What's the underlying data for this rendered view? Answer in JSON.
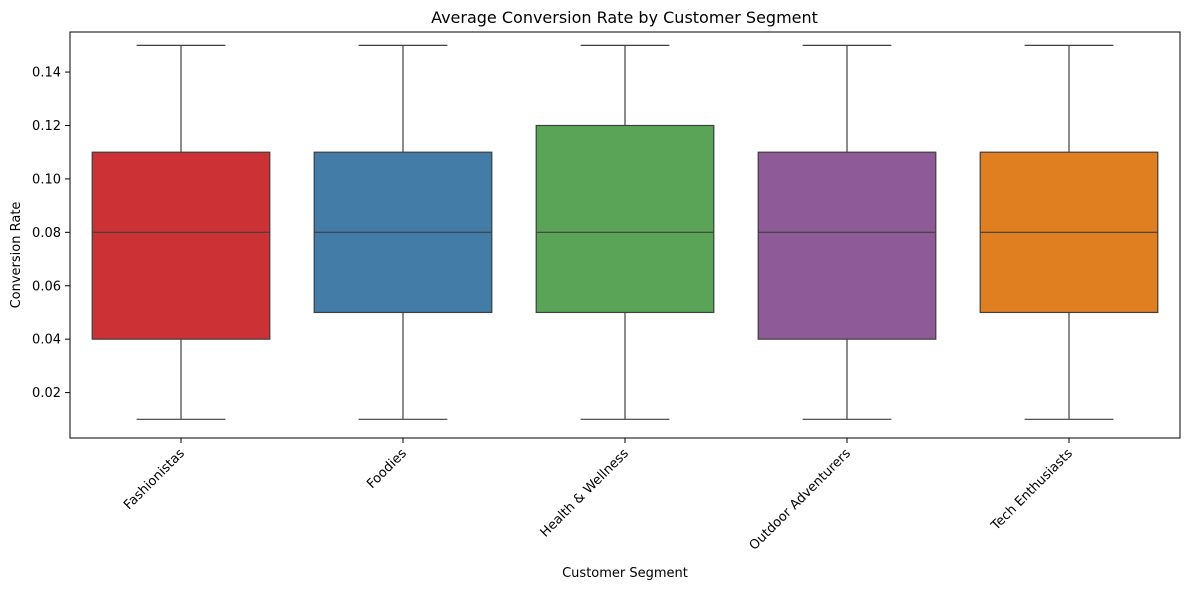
{
  "chart_data": {
    "type": "box",
    "title": "Average Conversion Rate by Customer Segment",
    "xlabel": "Customer Segment",
    "ylabel": "Conversion Rate",
    "ylim": [
      0.003,
      0.155
    ],
    "yticks": [
      0.02,
      0.04,
      0.06,
      0.08,
      0.1,
      0.12,
      0.14
    ],
    "ytick_labels": [
      "0.02",
      "0.04",
      "0.06",
      "0.08",
      "0.10",
      "0.12",
      "0.14"
    ],
    "grid": false,
    "x_tick_rotation": "45",
    "categories": [
      "Fashionistas",
      "Foodies",
      "Health & Wellness",
      "Outdoor Adventurers",
      "Tech Enthusiasts"
    ],
    "boxes": [
      {
        "category": "Fashionistas",
        "min": 0.01,
        "q1": 0.04,
        "median": 0.08,
        "q3": 0.11,
        "max": 0.15,
        "color": "#cc3135"
      },
      {
        "category": "Foodies",
        "min": 0.01,
        "q1": 0.05,
        "median": 0.08,
        "q3": 0.11,
        "max": 0.15,
        "color": "#447ca8"
      },
      {
        "category": "Health & Wellness",
        "min": 0.01,
        "q1": 0.05,
        "median": 0.08,
        "q3": 0.12,
        "max": 0.15,
        "color": "#5aa457"
      },
      {
        "category": "Outdoor Adventurers",
        "min": 0.01,
        "q1": 0.04,
        "median": 0.08,
        "q3": 0.11,
        "max": 0.15,
        "color": "#8e5a98"
      },
      {
        "category": "Tech Enthusiasts",
        "min": 0.01,
        "q1": 0.05,
        "median": 0.08,
        "q3": 0.11,
        "max": 0.15,
        "color": "#e07f20"
      }
    ]
  }
}
